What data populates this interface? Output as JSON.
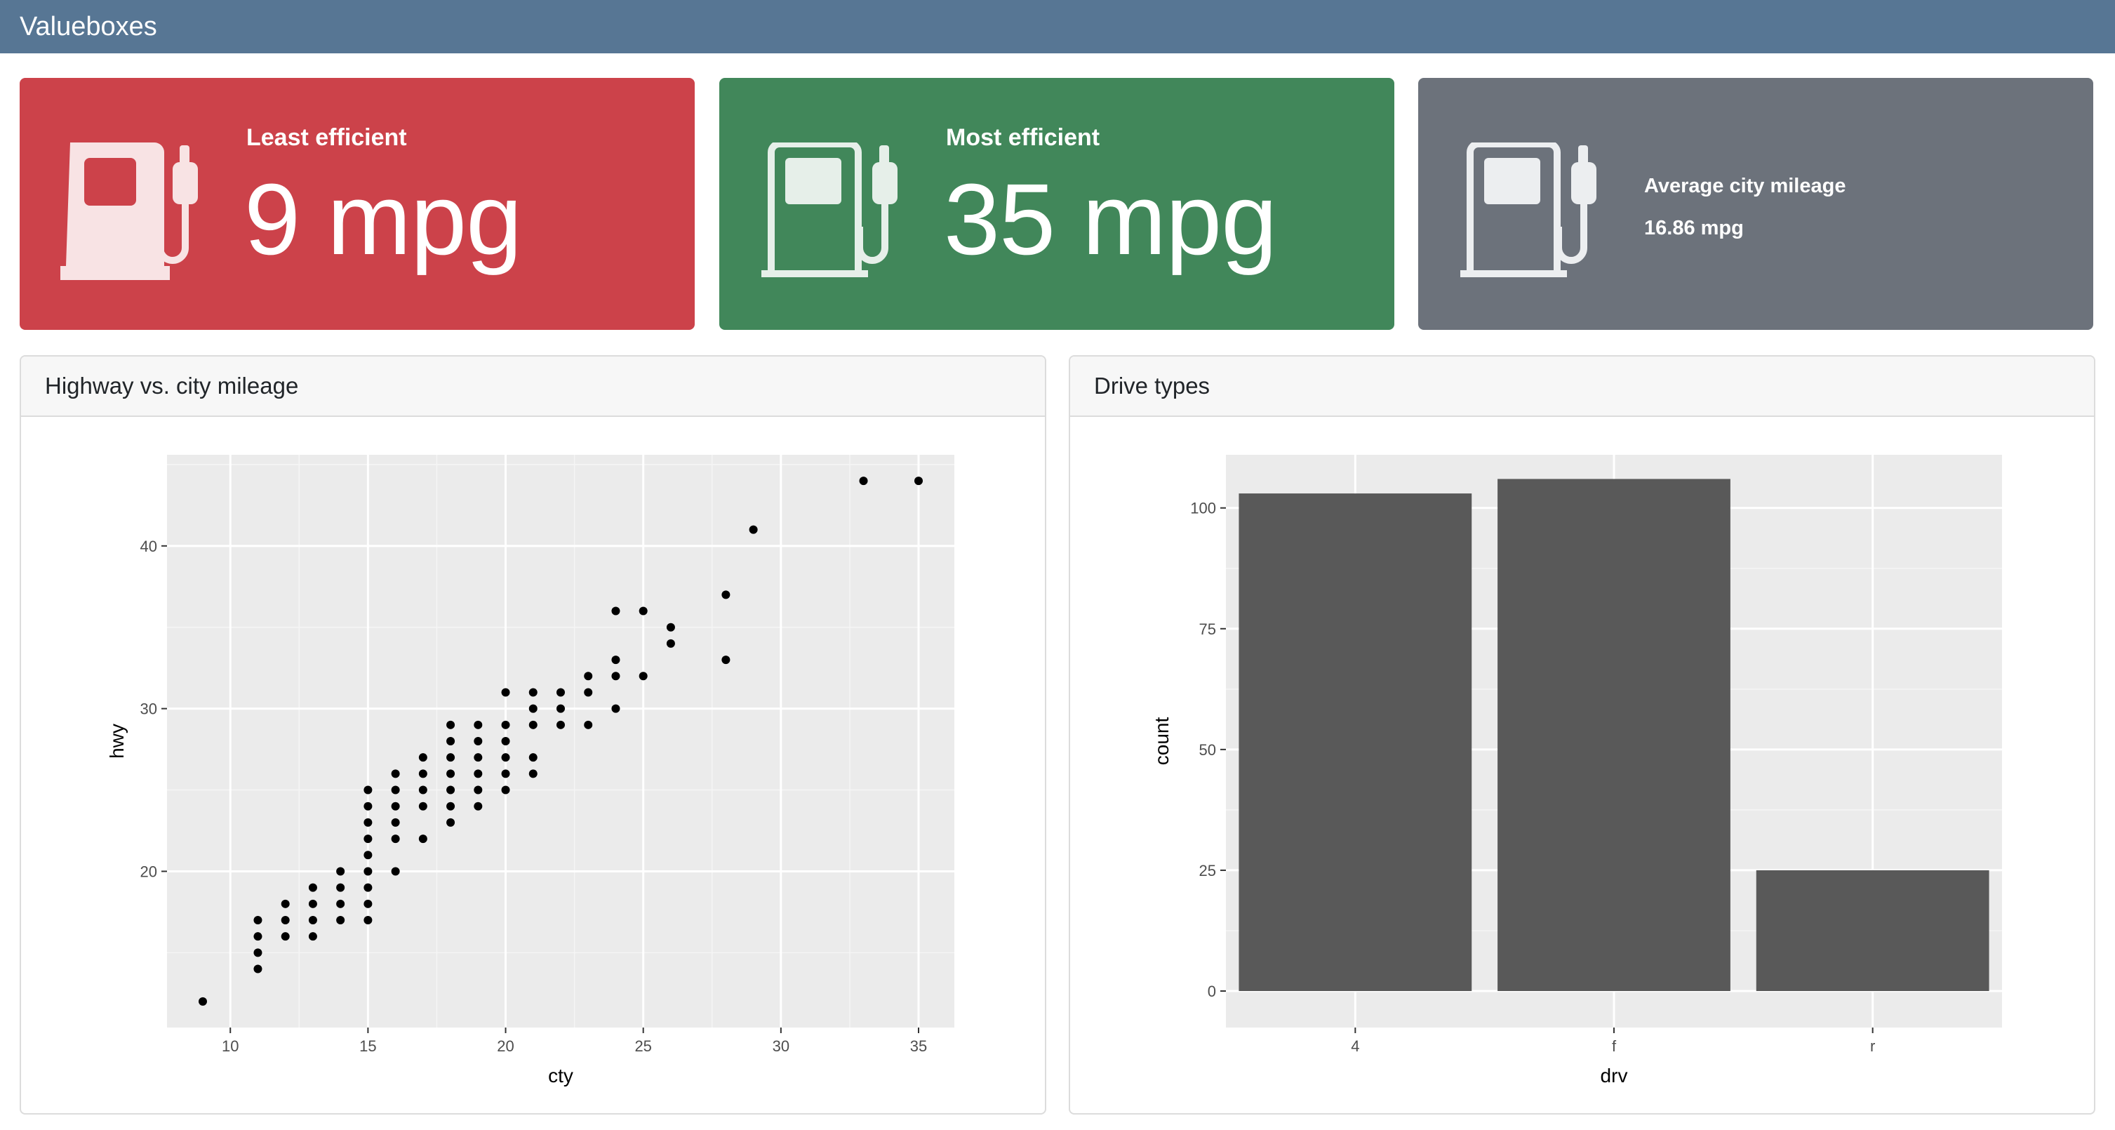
{
  "navbar": {
    "title": "Valueboxes"
  },
  "valueboxes": [
    {
      "title": "Least efficient",
      "value": "9 mpg",
      "icon": "fuel-pump-icon",
      "color": "#cc424a"
    },
    {
      "title": "Most efficient",
      "value": "35 mpg",
      "icon": "fuel-pump-icon",
      "color": "#41875a"
    },
    {
      "title": "Average city mileage",
      "value": "16.86 mpg",
      "icon": "fuel-pump-icon",
      "color": "#6c727b"
    }
  ],
  "cards": {
    "scatter": {
      "title": "Highway vs. city mileage"
    },
    "bar": {
      "title": "Drive types"
    }
  },
  "chart_data": [
    {
      "type": "scatter",
      "xlabel": "cty",
      "ylabel": "hwy",
      "xlim": [
        7.7,
        36.3
      ],
      "ylim": [
        10.4,
        45.6
      ],
      "xticks": [
        10,
        15,
        20,
        25,
        30,
        35
      ],
      "yticks": [
        20,
        30,
        40
      ],
      "grid": true,
      "points": [
        [
          9,
          12
        ],
        [
          11,
          14
        ],
        [
          11,
          15
        ],
        [
          11,
          16
        ],
        [
          11,
          17
        ],
        [
          12,
          16
        ],
        [
          12,
          17
        ],
        [
          12,
          18
        ],
        [
          13,
          16
        ],
        [
          13,
          17
        ],
        [
          13,
          18
        ],
        [
          13,
          19
        ],
        [
          14,
          17
        ],
        [
          14,
          18
        ],
        [
          14,
          19
        ],
        [
          14,
          20
        ],
        [
          15,
          17
        ],
        [
          15,
          18
        ],
        [
          15,
          19
        ],
        [
          15,
          20
        ],
        [
          15,
          21
        ],
        [
          15,
          22
        ],
        [
          15,
          23
        ],
        [
          15,
          24
        ],
        [
          15,
          25
        ],
        [
          16,
          20
        ],
        [
          16,
          22
        ],
        [
          16,
          23
        ],
        [
          16,
          24
        ],
        [
          16,
          25
        ],
        [
          16,
          26
        ],
        [
          17,
          22
        ],
        [
          17,
          24
        ],
        [
          17,
          25
        ],
        [
          17,
          26
        ],
        [
          17,
          27
        ],
        [
          18,
          23
        ],
        [
          18,
          24
        ],
        [
          18,
          25
        ],
        [
          18,
          26
        ],
        [
          18,
          27
        ],
        [
          18,
          28
        ],
        [
          18,
          29
        ],
        [
          19,
          24
        ],
        [
          19,
          25
        ],
        [
          19,
          26
        ],
        [
          19,
          27
        ],
        [
          19,
          28
        ],
        [
          19,
          29
        ],
        [
          20,
          25
        ],
        [
          20,
          26
        ],
        [
          20,
          27
        ],
        [
          20,
          28
        ],
        [
          20,
          29
        ],
        [
          20,
          31
        ],
        [
          21,
          26
        ],
        [
          21,
          27
        ],
        [
          21,
          29
        ],
        [
          21,
          30
        ],
        [
          21,
          31
        ],
        [
          22,
          29
        ],
        [
          22,
          30
        ],
        [
          22,
          31
        ],
        [
          23,
          29
        ],
        [
          23,
          31
        ],
        [
          23,
          32
        ],
        [
          24,
          30
        ],
        [
          24,
          32
        ],
        [
          24,
          33
        ],
        [
          24,
          36
        ],
        [
          25,
          32
        ],
        [
          25,
          36
        ],
        [
          26,
          34
        ],
        [
          26,
          35
        ],
        [
          28,
          33
        ],
        [
          28,
          37
        ],
        [
          29,
          41
        ],
        [
          33,
          44
        ],
        [
          35,
          44
        ]
      ]
    },
    {
      "type": "bar",
      "xlabel": "drv",
      "ylabel": "count",
      "categories": [
        "4",
        "f",
        "r"
      ],
      "values": [
        103,
        106,
        25
      ],
      "ylim": [
        0,
        111
      ],
      "yticks": [
        0,
        25,
        50,
        75,
        100
      ],
      "bar_color": "#595959",
      "grid": true
    }
  ]
}
